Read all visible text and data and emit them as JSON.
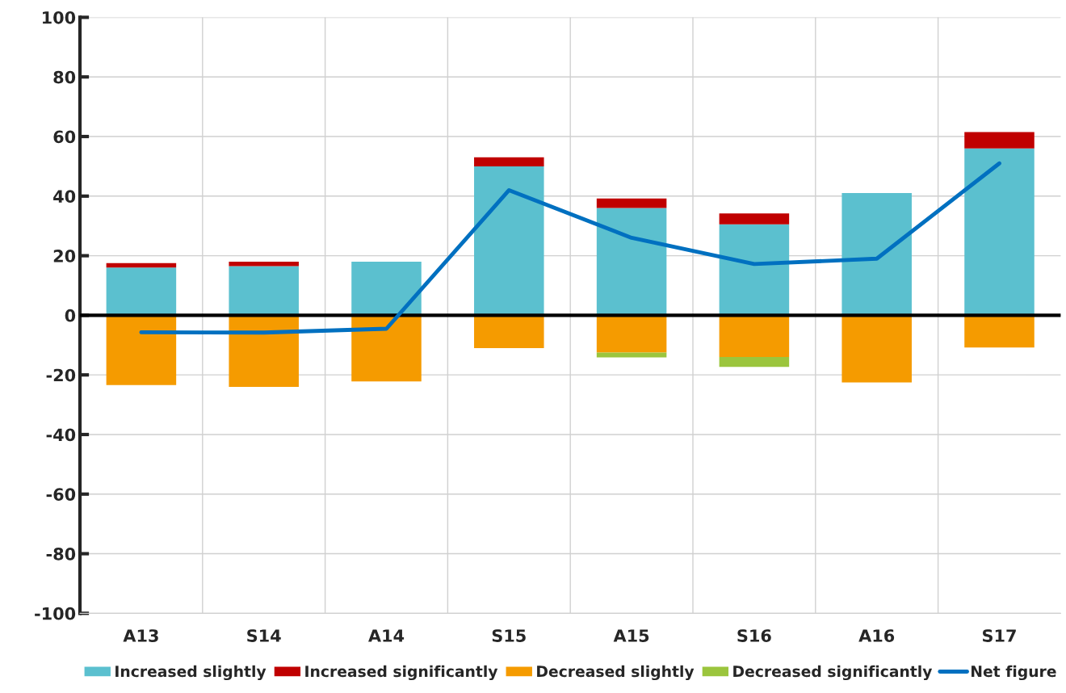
{
  "chart_data": {
    "type": "bar",
    "stacked": true,
    "categories": [
      "A13",
      "S14",
      "A14",
      "S15",
      "A15",
      "S16",
      "A16",
      "S17"
    ],
    "series": [
      {
        "name": "Increased slightly",
        "color": "#5bc0cf",
        "values": [
          16,
          16.5,
          18,
          50,
          36,
          30.5,
          41,
          56
        ]
      },
      {
        "name": "Increased significantly",
        "color": "#c00000",
        "values": [
          1.5,
          1.5,
          null,
          3,
          3.2,
          3.7,
          null,
          5.5
        ]
      },
      {
        "name": "Decreased slightly",
        "color": "#f59b00",
        "values": [
          -23.4,
          -24,
          -22.2,
          -11,
          -12.5,
          -14,
          -22.5,
          -10.8
        ]
      },
      {
        "name": "Decreased significantly",
        "color": "#9bc53d",
        "values": [
          null,
          null,
          null,
          null,
          -1.6,
          -3.3,
          null,
          null
        ]
      },
      {
        "name": "Net figure",
        "type": "line",
        "color": "#0070c0",
        "values": [
          -5.7,
          -5.8,
          -4.5,
          42,
          26,
          17.2,
          19,
          51
        ]
      }
    ],
    "ylim": [
      -100,
      100
    ],
    "yticks": [
      -100,
      -80,
      -60,
      -40,
      -20,
      0,
      20,
      40,
      60,
      80,
      100
    ],
    "ref_lines": [
      {
        "axis": "y",
        "value": 0,
        "color": "#000000"
      }
    ],
    "grid": true,
    "legend": "bottom",
    "marker": "none",
    "line_style": "solid"
  }
}
